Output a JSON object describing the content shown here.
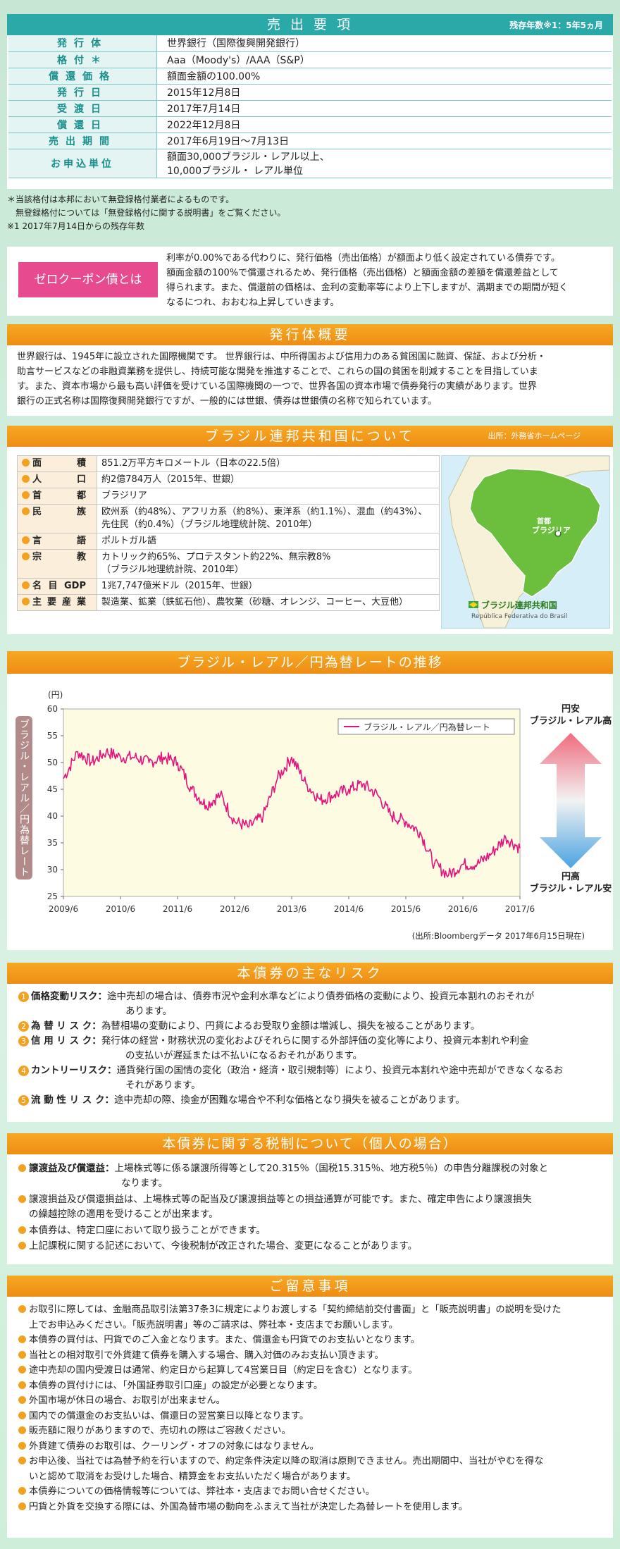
{
  "sale": {
    "header": "売 出 要 項",
    "remaining": "残存年数※1：5年5ヵ月",
    "rows": [
      {
        "label": "発行体",
        "value": "世界銀行（国際復興開発銀行）"
      },
      {
        "label": "格付＊",
        "value": "Aaa（Moody's）/AAA（S&P）"
      },
      {
        "label": "償還価格",
        "value": "額面金額の100.00%"
      },
      {
        "label": "発行日",
        "value": "2015年12月8日"
      },
      {
        "label": "受渡日",
        "value": "2017年7月14日"
      },
      {
        "label": "償還日",
        "value": "2022年12月8日"
      },
      {
        "label": "売出期間",
        "value": "2017年6月19日〜7月13日"
      },
      {
        "label": "お申込単位",
        "value": "額面30,000ブラジル・レアル以上、",
        "value2": "10,000ブラジル・ レアル単位"
      }
    ],
    "notes": [
      "＊当該格付は本邦において無登録格付業者によるものです。",
      "　無登録格付については「無登録格付に関する説明書」をご覧ください。",
      "※1 2017年7月14日からの残存年数"
    ]
  },
  "zero": {
    "badge": "ゼロクーポン債とは",
    "lines": [
      "利率が0.00%である代わりに、発行価格（売出価格）が額面より低く設定されている債券です。",
      "額面金額の100%で償還されるため、発行価格（売出価格）と額面金額の差額を償還差益として",
      "得られます。また、償還前の価格は、金利の変動率等により上下しますが、満期までの期間が短く",
      "なるにつれ、おおむね上昇していきます。"
    ]
  },
  "issuer": {
    "header": "発行体概要",
    "lines": [
      "世界銀行は、1945年に設立された国際機関です。 世界銀行は、中所得国および信用力のある貧困国に融資、保証、および分析・",
      "助言サービスなどの非融資業務を提供し、持続可能な開発を推進することで、これらの国の貧困を削減することを目指していま",
      "す。また、資本市場から最も高い評価を受けている国際機関の一つで、世界各国の資本市場で債券発行の実績があります。世界",
      "銀行の正式名称は国際復興開発銀行ですが、一般的には世銀、債券は世銀債の名称で知られています。"
    ]
  },
  "brazil": {
    "header": "ブラジル連邦共和国について",
    "source": "出所：外務省ホームページ",
    "rows": [
      {
        "label": "面積",
        "value": "851.2万平方キロメートル（日本の22.5倍）"
      },
      {
        "label": "人口",
        "value": "約2億784万人（2015年、世銀）"
      },
      {
        "label": "首都",
        "value": "ブラジリア"
      },
      {
        "label": "民族",
        "value": "欧州系（約48%）、アフリカ系（約8%）、東洋系（約1.1%）、混血（約43%）、",
        "value2": "先住民（約0.4%）（ブラジル地理統計院、2010年）"
      },
      {
        "label": "言語",
        "value": "ポルトガル語"
      },
      {
        "label": "宗教",
        "value": "カトリック約65%、プロテスタント約22%、無宗教8%",
        "value2": "（ブラジル地理統計院、2010年）"
      },
      {
        "label": "名目GDP",
        "value": "1兆7,747億米ドル（2015年、世銀）"
      },
      {
        "label": "主要産業",
        "value": "製造業、鉱業（鉄鉱石他）、農牧業（砂糖、オレンジ、コーヒー、大豆他）"
      }
    ],
    "map": {
      "capital_label1": "首都",
      "capital_label2": "ブラジリア",
      "title": "ブラジル連邦共和国",
      "subtitle": "República Federativa do Brasil"
    }
  },
  "fx": {
    "header": "ブラジル・レアル／円為替レートの推移",
    "vertical_label": "ブラジル・レアル／円為替レート",
    "top_label1": "円安",
    "top_label2": "ブラジル・レアル高",
    "bottom_label1": "円高",
    "bottom_label2": "ブラジル・レアル安",
    "source": "(出所:Bloombergデータ 2017年6月15日現在)"
  },
  "chart_data": {
    "type": "line",
    "ylabel": "(円)",
    "ylim": [
      25,
      60
    ],
    "yticks": [
      25,
      30,
      35,
      40,
      45,
      50,
      55,
      60
    ],
    "xticks": [
      "2009/6",
      "2010/6",
      "2011/6",
      "2012/6",
      "2013/6",
      "2014/6",
      "2015/6",
      "2016/6",
      "2017/6"
    ],
    "grid": false,
    "legend": "top-right",
    "color": "#e3147c",
    "series": [
      {
        "name": "ブラジル・レアル／円為替レート",
        "x": [
          "2009/6",
          "2009/9",
          "2009/12",
          "2010/3",
          "2010/6",
          "2010/9",
          "2010/12",
          "2011/3",
          "2011/6",
          "2011/9",
          "2011/12",
          "2012/3",
          "2012/6",
          "2012/9",
          "2012/12",
          "2013/3",
          "2013/6",
          "2013/9",
          "2013/12",
          "2014/3",
          "2014/6",
          "2014/9",
          "2014/12",
          "2015/3",
          "2015/6",
          "2015/9",
          "2015/12",
          "2016/3",
          "2016/6",
          "2016/9",
          "2016/12",
          "2017/3",
          "2017/6"
        ],
        "values": [
          47,
          52,
          50,
          52,
          51,
          51,
          50,
          51,
          50,
          45,
          42,
          44,
          39,
          38,
          40,
          47,
          51,
          46,
          43,
          44,
          45,
          46,
          44,
          40,
          39,
          37,
          31,
          29,
          31,
          31,
          33,
          36,
          34
        ]
      }
    ]
  },
  "risk": {
    "header": "本債券の主なリスク",
    "items": [
      {
        "num": "1",
        "label": "価格変動リスク：",
        "text": "途中売却の場合は、債券市況や金利水準などにより債券価格の変動により、投資元本割れのおそれが",
        "text2": "あります。"
      },
      {
        "num": "2",
        "label": "為 替 リ ス ク：",
        "text": "為替相場の変動により、円貨によるお受取り金額は増減し、損失を被ることがあります。"
      },
      {
        "num": "3",
        "label": "信 用 リ ス ク：",
        "text": "発行体の経営・財務状況の変化およびそれらに関する外部評価の変化等により、投資元本割れや利金",
        "text2": "の支払いが遅延または不払いになるおそれがあります。"
      },
      {
        "num": "4",
        "label": "カントリーリスク：",
        "text": "通貨発行国の国情の変化（政治・経済・取引規制等）により、投資元本割れや途中売却ができなくなるお",
        "text2": "それがあります。"
      },
      {
        "num": "5",
        "label": "流 動 性 リ ス ク：",
        "text": "途中売却の際、換金が困難な場合や不利な価格となり損失を被ることがあります。"
      }
    ]
  },
  "tax": {
    "header": "本債券に関する税制について（個人の場合）",
    "items": [
      {
        "label": "譲渡益及び償還益：",
        "text": "上場株式等に係る譲渡所得等として20.315％（国税15.315％、地方税5％）の申告分離課税の対象と",
        "text2": "なります。"
      },
      {
        "text": "譲渡損益及び償還損益は、上場株式等の配当及び譲渡損益等との損益通算が可能です。また、確定申告により譲渡損失",
        "text2": "の繰越控除の適用を受けることが出来ます。"
      },
      {
        "text": "本債券は、特定口座において取り扱うことができます。"
      },
      {
        "text": "上記課税に関する記述において、今後税制が改正された場合、変更になることがあります。"
      }
    ]
  },
  "notes": {
    "header": "ご留意事項",
    "items": [
      {
        "text": "お取引に際しては、金融商品取引法第37条3に規定によりお渡しする「契約締結前交付書面」と「販売説明書」の説明を受けた",
        "text2": "上でお申込みください。「販売説明書」等のご請求は、弊社本・支店までお願いします。"
      },
      {
        "text": "本債券の買付は、円貨でのご入金となります。また、償還金も円貨でのお支払いとなります。"
      },
      {
        "text": "当社との相対取引で外貨建て債券を購入する場合、購入対価のみお支払い頂きます。"
      },
      {
        "text": "途中売却の国内受渡日は通常、約定日から起算して4営業日目（約定日を含む）となります。"
      },
      {
        "text": "本債券の買付けには、「外国証券取引口座」の設定が必要となります。"
      },
      {
        "text": "外国市場が休日の場合、お取引が出来ません。"
      },
      {
        "text": "国内での償還金のお支払いは、償還日の翌営業日以降となります。"
      },
      {
        "text": "販売額に限りがありますので、売切れの際はご容赦ください。"
      },
      {
        "text": "外貨建て債券のお取引は、クーリング・オフの対象にはなりません。"
      },
      {
        "text": "お申込後、当社では為替予約を行いますので、約定条件決定以降の取消は原則できません。売出期間中、当社がやむを得な",
        "text2": "いと認めて取消をお受けした場合、精算金をお支払いただく場合があります。"
      },
      {
        "text": "本債券についての価格情報等については、弊社本・支店までお問い合せください。"
      },
      {
        "text": "円貨と外貨を交換する際には、外国為替市場の動向をふまえて当社が決定した為替レートを使用します。"
      }
    ]
  }
}
